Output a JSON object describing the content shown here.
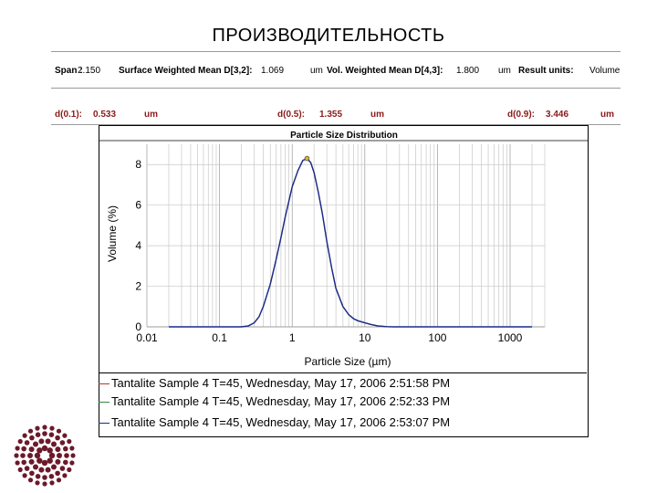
{
  "slide": {
    "title": "ПРОИЗВОДИТЕЛЬНОСТЬ"
  },
  "stats": {
    "span_label": "Span :",
    "span_value": "2.150",
    "swm_label": "Surface Weighted Mean D[3,2]:",
    "swm_value": "1.069",
    "swm_unit": "um",
    "vwm_label": "Vol. Weighted Mean D[4,3]:",
    "vwm_value": "1.800",
    "vwm_unit": "um",
    "result_label": "Result units:",
    "result_value": "Volume",
    "d01_label": "d(0.1):",
    "d01_value": "0.533",
    "d01_unit": "um",
    "d05_label": "d(0.5):",
    "d05_value": "1.355",
    "d05_unit": "um",
    "d09_label": "d(0.9):",
    "d09_value": "3.446",
    "d09_unit": "um"
  },
  "chart_data": {
    "type": "line",
    "title": "Particle Size Distribution",
    "xlabel": "Particle Size (µm)",
    "ylabel": "Volume (%)",
    "xscale": "log",
    "xlim": [
      0.01,
      3000
    ],
    "ylim": [
      0,
      9
    ],
    "xticks": [
      "0.01",
      "0.1",
      "1",
      "10",
      "100",
      "1000"
    ],
    "xtick_values": [
      0.01,
      0.1,
      1,
      10,
      100,
      1000
    ],
    "yticks": [
      "0",
      "2",
      "4",
      "6",
      "8"
    ],
    "ytick_values": [
      0,
      2,
      4,
      6,
      8
    ],
    "grid": true,
    "x": [
      0.02,
      0.2,
      0.25,
      0.3,
      0.35,
      0.4,
      0.5,
      0.6,
      0.7,
      0.8,
      0.9,
      1.0,
      1.2,
      1.4,
      1.6,
      1.8,
      2.0,
      2.3,
      2.6,
      3.0,
      3.5,
      4.0,
      5.0,
      6.0,
      7.0,
      8.0,
      10,
      12,
      15,
      20,
      25,
      30,
      2000
    ],
    "series": [
      {
        "name": "Tantalite Sample 4 T=45, Wednesday, May 17, 2006 2:51:58 PM",
        "color": "#b03a2e",
        "values": [
          0,
          0,
          0.05,
          0.2,
          0.5,
          1.0,
          2.1,
          3.3,
          4.4,
          5.4,
          6.2,
          6.9,
          7.7,
          8.2,
          8.3,
          8.1,
          7.6,
          6.6,
          5.6,
          4.2,
          2.9,
          1.9,
          1.0,
          0.6,
          0.4,
          0.3,
          0.2,
          0.12,
          0.05,
          0.01,
          0,
          0,
          0
        ]
      },
      {
        "name": "Tantalite Sample 4 T=45, Wednesday, May 17, 2006 2:52:33 PM",
        "color": "#2e8b3a",
        "values": [
          0,
          0,
          0.05,
          0.2,
          0.5,
          1.0,
          2.1,
          3.3,
          4.4,
          5.4,
          6.2,
          6.9,
          7.7,
          8.2,
          8.3,
          8.1,
          7.6,
          6.6,
          5.6,
          4.2,
          2.9,
          1.9,
          1.0,
          0.6,
          0.4,
          0.3,
          0.2,
          0.12,
          0.05,
          0.01,
          0,
          0,
          0
        ]
      },
      {
        "name": "Tantalite Sample 4 T=45, Wednesday, May 17, 2006 2:53:07 PM",
        "color": "#1a2a8c",
        "values": [
          0,
          0,
          0.05,
          0.2,
          0.5,
          1.0,
          2.1,
          3.3,
          4.4,
          5.4,
          6.2,
          6.9,
          7.7,
          8.2,
          8.3,
          8.1,
          7.6,
          6.6,
          5.6,
          4.2,
          2.9,
          1.9,
          1.0,
          0.6,
          0.4,
          0.3,
          0.2,
          0.12,
          0.05,
          0.01,
          0,
          0,
          0
        ]
      }
    ]
  },
  "legend": {
    "items": [
      "Tantalite Sample 4 T=45, Wednesday, May 17, 2006 2:51:58 PM",
      "Tantalite Sample 4 T=45, Wednesday, May 17, 2006 2:52:33 PM",
      "Tantalite Sample 4 T=45, Wednesday, May 17, 2006 2:53:07 PM"
    ]
  },
  "colors": {
    "accent": "#8b1a1a",
    "curve": "#1a2a8c",
    "logo": "#6b1a2a"
  }
}
